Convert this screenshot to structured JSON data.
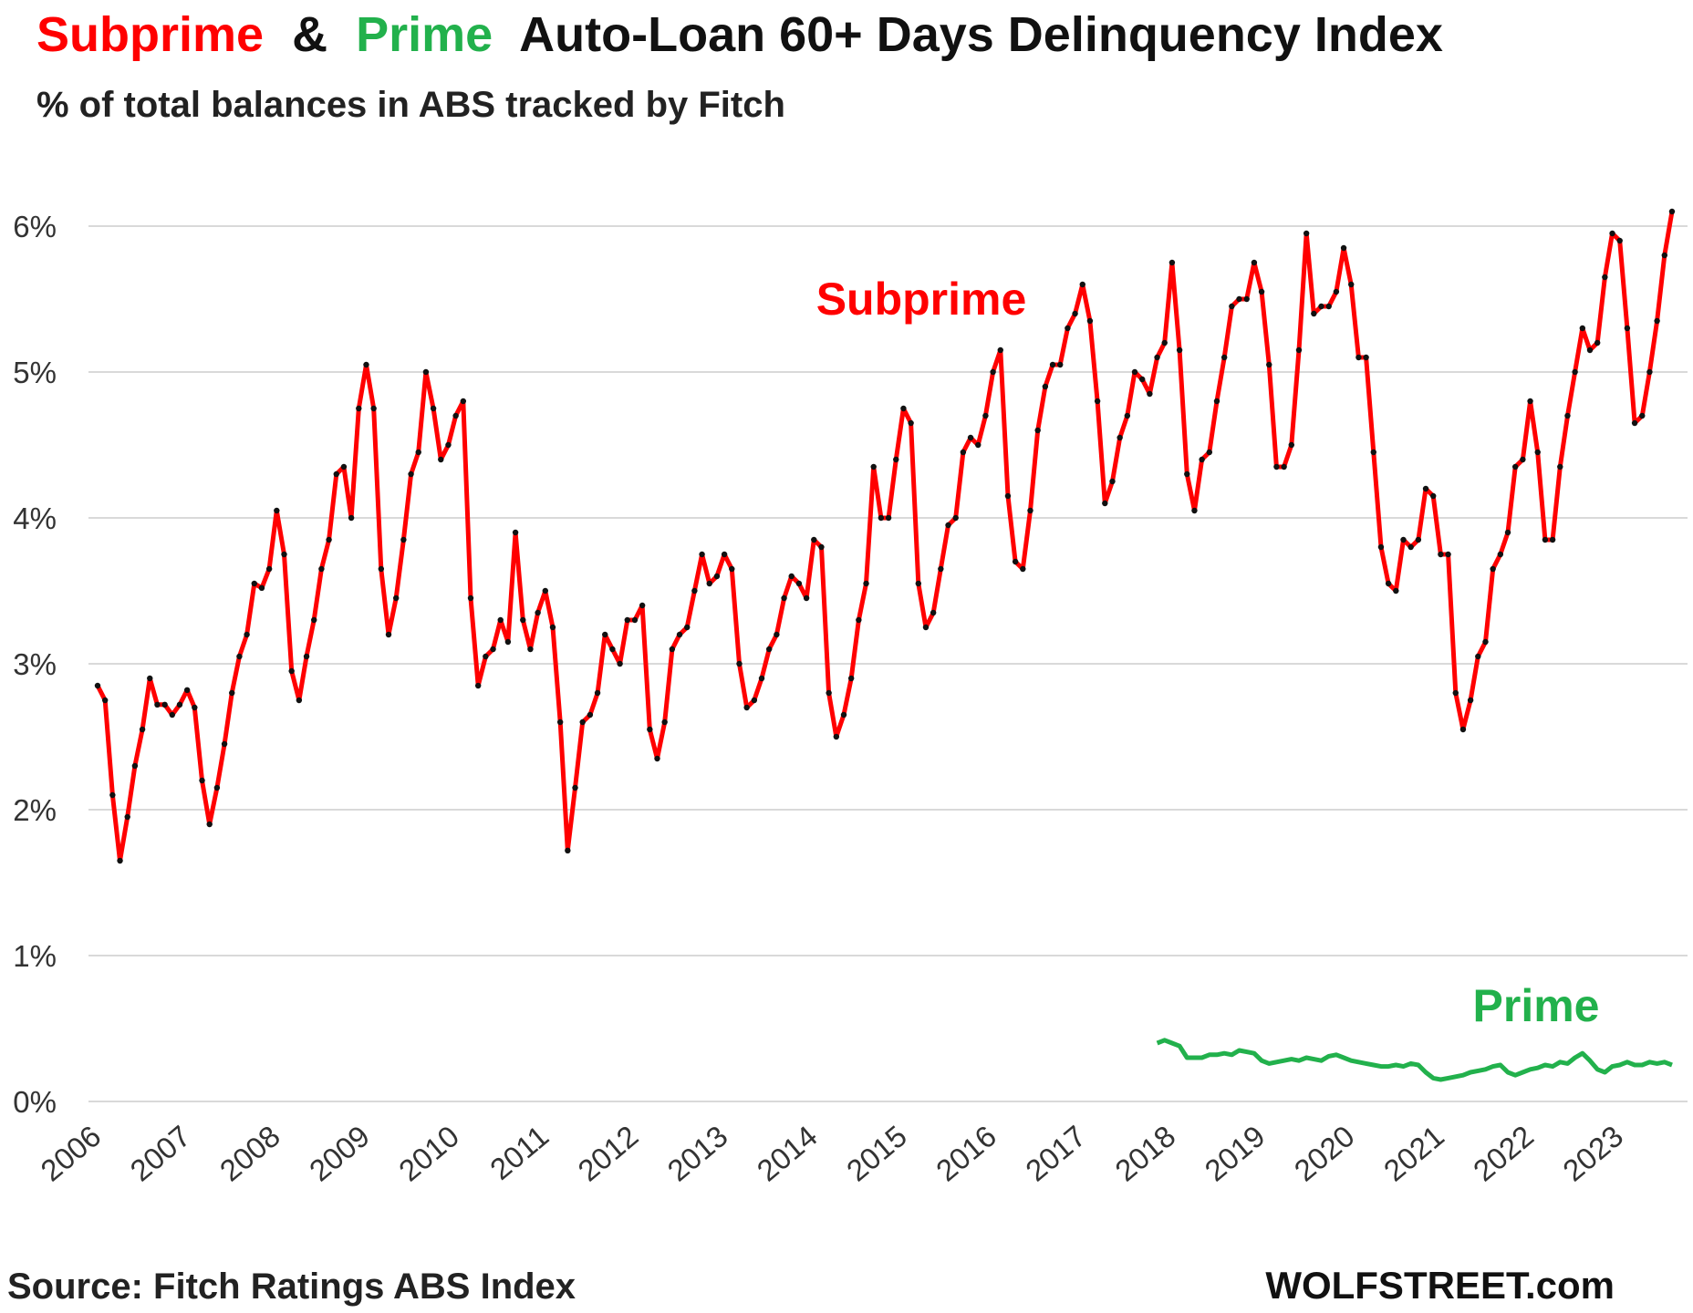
{
  "chart_data": {
    "type": "line",
    "title": [
      "Subprime",
      "&",
      "Prime",
      "Auto-Loan  60+ Days  Delinquency  Index"
    ],
    "subtitle": "% of total balances in ABS tracked by Fitch",
    "source": "Source: Fitch Ratings ABS Index",
    "brand": "WOLFSTREET.com",
    "categories": [
      "2006",
      null,
      null,
      null,
      null,
      null,
      null,
      null,
      null,
      null,
      null,
      null,
      "2007",
      null,
      null,
      null,
      null,
      null,
      null,
      null,
      null,
      null,
      null,
      null,
      "2008",
      null,
      null,
      null,
      null,
      null,
      null,
      null,
      null,
      null,
      null,
      null,
      "2009",
      null,
      null,
      null,
      null,
      null,
      null,
      null,
      null,
      null,
      null,
      null,
      "2010",
      null,
      null,
      null,
      null,
      null,
      null,
      null,
      null,
      null,
      null,
      null,
      "2011",
      null,
      null,
      null,
      null,
      null,
      null,
      null,
      null,
      null,
      null,
      null,
      "2012",
      null,
      null,
      null,
      null,
      null,
      null,
      null,
      null,
      null,
      null,
      null,
      "2013",
      null,
      null,
      null,
      null,
      null,
      null,
      null,
      null,
      null,
      null,
      null,
      "2014",
      null,
      null,
      null,
      null,
      null,
      null,
      null,
      null,
      null,
      null,
      null,
      "2015",
      null,
      null,
      null,
      null,
      null,
      null,
      null,
      null,
      null,
      null,
      null,
      "2016",
      null,
      null,
      null,
      null,
      null,
      null,
      null,
      null,
      null,
      null,
      null,
      "2017",
      null,
      null,
      null,
      null,
      null,
      null,
      null,
      null,
      null,
      null,
      null,
      "2018",
      null,
      null,
      null,
      null,
      null,
      null,
      null,
      null,
      null,
      null,
      null,
      "2019",
      null,
      null,
      null,
      null,
      null,
      null,
      null,
      null,
      null,
      null,
      null,
      "2020",
      null,
      null,
      null,
      null,
      null,
      null,
      null,
      null,
      null,
      null,
      null,
      "2021",
      null,
      null,
      null,
      null,
      null,
      null,
      null,
      null,
      null,
      null,
      null,
      "2022",
      null,
      null,
      null,
      null,
      null,
      null,
      null,
      null,
      null,
      null,
      null,
      "2023",
      null,
      null,
      null,
      null,
      null,
      null,
      null
    ],
    "series": [
      {
        "name": "Subprime",
        "color": "#ff0000",
        "values": [
          2.85,
          2.75,
          2.1,
          1.65,
          1.95,
          2.3,
          2.55,
          2.9,
          2.72,
          2.72,
          2.65,
          2.72,
          2.82,
          2.7,
          2.2,
          1.9,
          2.15,
          2.45,
          2.8,
          3.05,
          3.2,
          3.55,
          3.52,
          3.65,
          4.05,
          3.75,
          2.95,
          2.75,
          3.05,
          3.3,
          3.65,
          3.85,
          4.3,
          4.35,
          4.0,
          4.75,
          5.05,
          4.75,
          3.65,
          3.2,
          3.45,
          3.85,
          4.3,
          4.45,
          5.0,
          4.75,
          4.4,
          4.5,
          4.7,
          4.8,
          3.45,
          2.85,
          3.05,
          3.1,
          3.3,
          3.15,
          3.9,
          3.3,
          3.1,
          3.35,
          3.5,
          3.25,
          2.6,
          1.72,
          2.15,
          2.6,
          2.65,
          2.8,
          3.2,
          3.1,
          3.0,
          3.3,
          3.3,
          3.4,
          2.55,
          2.35,
          2.6,
          3.1,
          3.2,
          3.25,
          3.5,
          3.75,
          3.55,
          3.6,
          3.75,
          3.65,
          3.0,
          2.7,
          2.75,
          2.9,
          3.1,
          3.2,
          3.45,
          3.6,
          3.55,
          3.45,
          3.85,
          3.8,
          2.8,
          2.5,
          2.65,
          2.9,
          3.3,
          3.55,
          4.35,
          4.0,
          4.0,
          4.4,
          4.75,
          4.65,
          3.55,
          3.25,
          3.35,
          3.65,
          3.95,
          4.0,
          4.45,
          4.55,
          4.5,
          4.7,
          5.0,
          5.15,
          4.15,
          3.7,
          3.65,
          4.05,
          4.6,
          4.9,
          5.05,
          5.05,
          5.3,
          5.4,
          5.6,
          5.35,
          4.8,
          4.1,
          4.25,
          4.55,
          4.7,
          5.0,
          4.95,
          4.85,
          5.1,
          5.2,
          5.75,
          5.15,
          4.3,
          4.05,
          4.4,
          4.45,
          4.8,
          5.1,
          5.45,
          5.5,
          5.5,
          5.75,
          5.55,
          5.05,
          4.35,
          4.35,
          4.5,
          5.15,
          5.95,
          5.4,
          5.45,
          5.45,
          5.55,
          5.85,
          5.6,
          5.1,
          5.1,
          4.45,
          3.8,
          3.55,
          3.5,
          3.85,
          3.8,
          3.85,
          4.2,
          4.15,
          3.75,
          3.75,
          2.8,
          2.55,
          2.75,
          3.05,
          3.15,
          3.65,
          3.75,
          3.9,
          4.35,
          4.4,
          4.8,
          4.45,
          3.85,
          3.85,
          4.35,
          4.7,
          5.0,
          5.3,
          5.15,
          5.2,
          5.65,
          5.95,
          5.9,
          5.3,
          4.65,
          4.7,
          5.0,
          5.35,
          5.8,
          6.1
        ]
      },
      {
        "name": "Prime",
        "color": "#22b14c",
        "values": [
          null,
          null,
          null,
          null,
          null,
          null,
          null,
          null,
          null,
          null,
          null,
          null,
          null,
          null,
          null,
          null,
          null,
          null,
          null,
          null,
          null,
          null,
          null,
          null,
          null,
          null,
          null,
          null,
          null,
          null,
          null,
          null,
          null,
          null,
          null,
          null,
          null,
          null,
          null,
          null,
          null,
          null,
          null,
          null,
          null,
          null,
          null,
          null,
          null,
          null,
          null,
          null,
          null,
          null,
          null,
          null,
          null,
          null,
          null,
          null,
          null,
          null,
          null,
          null,
          null,
          null,
          null,
          null,
          null,
          null,
          null,
          null,
          null,
          null,
          null,
          null,
          null,
          null,
          null,
          null,
          null,
          null,
          null,
          null,
          null,
          null,
          null,
          null,
          null,
          null,
          null,
          null,
          null,
          null,
          null,
          null,
          null,
          null,
          null,
          null,
          null,
          null,
          null,
          null,
          null,
          null,
          null,
          null,
          null,
          null,
          null,
          null,
          null,
          null,
          null,
          null,
          null,
          null,
          null,
          null,
          null,
          null,
          null,
          null,
          null,
          null,
          null,
          null,
          null,
          null,
          null,
          null,
          null,
          null,
          null,
          null,
          null,
          null,
          null,
          null,
          null,
          null,
          0.4,
          0.42,
          0.4,
          0.38,
          0.3,
          0.3,
          0.3,
          0.32,
          0.32,
          0.33,
          0.32,
          0.35,
          0.34,
          0.33,
          0.28,
          0.26,
          0.27,
          0.28,
          0.29,
          0.28,
          0.3,
          0.29,
          0.28,
          0.31,
          0.32,
          0.3,
          0.28,
          0.27,
          0.26,
          0.25,
          0.24,
          0.24,
          0.25,
          0.24,
          0.26,
          0.25,
          0.2,
          0.16,
          0.15,
          0.16,
          0.17,
          0.18,
          0.2,
          0.21,
          0.22,
          0.24,
          0.25,
          0.2,
          0.18,
          0.2,
          0.22,
          0.23,
          0.25,
          0.24,
          0.27,
          0.26,
          0.3,
          0.33,
          0.28,
          0.22,
          0.2,
          0.24,
          0.25,
          0.27,
          0.25,
          0.25,
          0.27,
          0.26,
          0.27,
          0.25
        ]
      }
    ],
    "ylim": [
      0,
      6
    ],
    "yticks": [
      {
        "value": 0,
        "label": "0%"
      },
      {
        "value": 1,
        "label": "1%"
      },
      {
        "value": 2,
        "label": "2%"
      },
      {
        "value": 3,
        "label": "3%"
      },
      {
        "value": 4,
        "label": "4%"
      },
      {
        "value": 5,
        "label": "5%"
      },
      {
        "value": 6,
        "label": "6%"
      }
    ],
    "grid": true,
    "markers": true
  }
}
